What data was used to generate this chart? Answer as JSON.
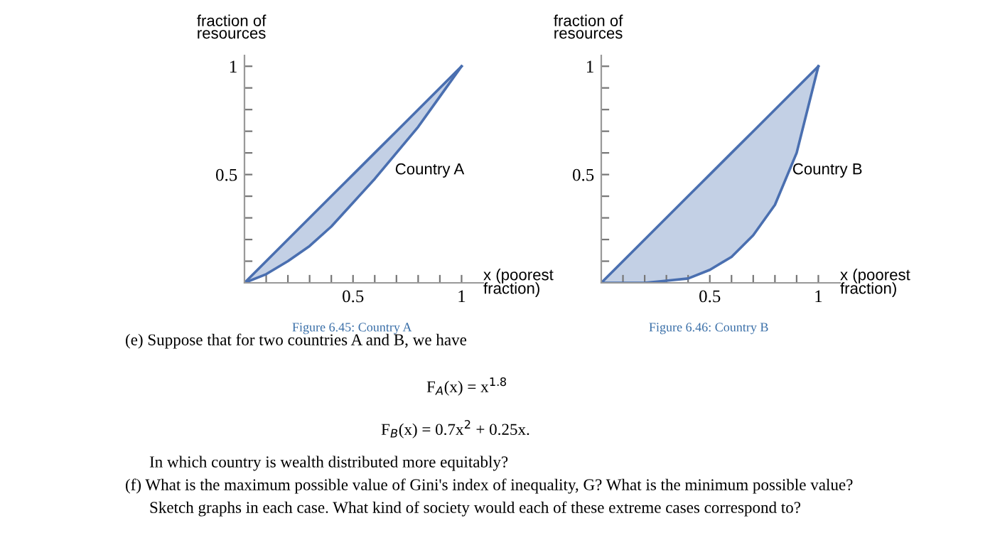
{
  "chart_data": [
    {
      "type": "line",
      "xlabel": "x (poorest\nfraction)",
      "ylabel": "fraction of\nresources",
      "x": [
        0,
        0.1,
        0.2,
        0.3,
        0.4,
        0.5,
        0.6,
        0.7,
        0.8,
        0.9,
        1
      ],
      "series": [
        {
          "color": "#4a6fb0",
          "values": [
            0,
            0.04,
            0.1,
            0.17,
            0.26,
            0.37,
            0.48,
            0.6,
            0.72,
            0.86,
            1
          ],
          "lower": [
            0,
            0.04,
            0.1,
            0.17,
            0.26,
            0.37,
            0.48,
            0.6,
            0.72,
            0.86,
            1
          ],
          "upper": [
            0,
            0.1,
            0.2,
            0.3,
            0.4,
            0.5,
            0.6,
            0.7,
            0.8,
            0.9,
            1
          ]
        }
      ],
      "xlim": [
        0,
        1.1
      ],
      "ylim": [
        0,
        1.05
      ],
      "xticks": [
        {
          "value": 0.1,
          "label": null
        },
        {
          "value": 0.2,
          "label": null
        },
        {
          "value": 0.3,
          "label": null
        },
        {
          "value": 0.4,
          "label": null
        },
        0.5,
        {
          "value": 0.6,
          "label": null
        },
        {
          "value": 0.7,
          "label": null
        },
        {
          "value": 0.8,
          "label": null
        },
        {
          "value": 0.9,
          "label": null
        },
        1
      ],
      "yticks": [
        {
          "value": 0.1,
          "label": null
        },
        {
          "value": 0.2,
          "label": null
        },
        {
          "value": 0.3,
          "label": null
        },
        {
          "value": 0.4,
          "label": null
        },
        0.5,
        {
          "value": 0.6,
          "label": null
        },
        {
          "value": 0.7,
          "label": null
        },
        {
          "value": 0.8,
          "label": null
        },
        {
          "value": 0.9,
          "label": null
        },
        1
      ],
      "grid": false,
      "annotations": [
        "Figure 6.45: Country A",
        "Country A"
      ]
    },
    {
      "type": "line",
      "xlabel": "x (poorest\nfraction)",
      "ylabel": "fraction of\nresources",
      "x": [
        0,
        0.1,
        0.2,
        0.3,
        0.4,
        0.5,
        0.6,
        0.7,
        0.8,
        0.9,
        1
      ],
      "series": [
        {
          "color": "#4a6fb0",
          "values": [
            0,
            0,
            0,
            0.01,
            0.02,
            0.06,
            0.12,
            0.22,
            0.36,
            0.6,
            1
          ],
          "lower": [
            0,
            0,
            0,
            0.01,
            0.02,
            0.06,
            0.12,
            0.22,
            0.36,
            0.6,
            1
          ],
          "upper": [
            0,
            0.1,
            0.2,
            0.3,
            0.4,
            0.5,
            0.6,
            0.7,
            0.8,
            0.9,
            1
          ]
        }
      ],
      "xlim": [
        0,
        1.1
      ],
      "ylim": [
        0,
        1.05
      ],
      "xticks": [
        {
          "value": 0.1,
          "label": null
        },
        {
          "value": 0.2,
          "label": null
        },
        {
          "value": 0.3,
          "label": null
        },
        {
          "value": 0.4,
          "label": null
        },
        0.5,
        {
          "value": 0.6,
          "label": null
        },
        {
          "value": 0.7,
          "label": null
        },
        {
          "value": 0.8,
          "label": null
        },
        {
          "value": 0.9,
          "label": null
        },
        1
      ],
      "yticks": [
        {
          "value": 0.1,
          "label": null
        },
        {
          "value": 0.2,
          "label": null
        },
        {
          "value": 0.3,
          "label": null
        },
        {
          "value": 0.4,
          "label": null
        },
        0.5,
        {
          "value": 0.6,
          "label": null
        },
        {
          "value": 0.7,
          "label": null
        },
        {
          "value": 0.8,
          "label": null
        },
        {
          "value": 0.9,
          "label": null
        },
        1
      ],
      "grid": false,
      "annotations": [
        "Figure 6.46: Country B",
        {
          "text": "Country B",
          "x": 0.88,
          "y": 0.52
        }
      ]
    },
    {
      "type": "other",
      "annotations": [
        "(e) Suppose that for two countries A and B, we have",
        "F$_{A}$(x) = x$^{1.8}$",
        "F$_{B}$(x) = 0.7x$^{2}$ + 0.25x.",
        "In which country is wealth distributed more equitably?",
        "(f) What is the maximum possible value of Gini's index of inequality, G? What is the minimum possible value?",
        "Sketch graphs in each case. What kind of society would each of these extreme cases correspond to?"
      ]
    }
  ]
}
